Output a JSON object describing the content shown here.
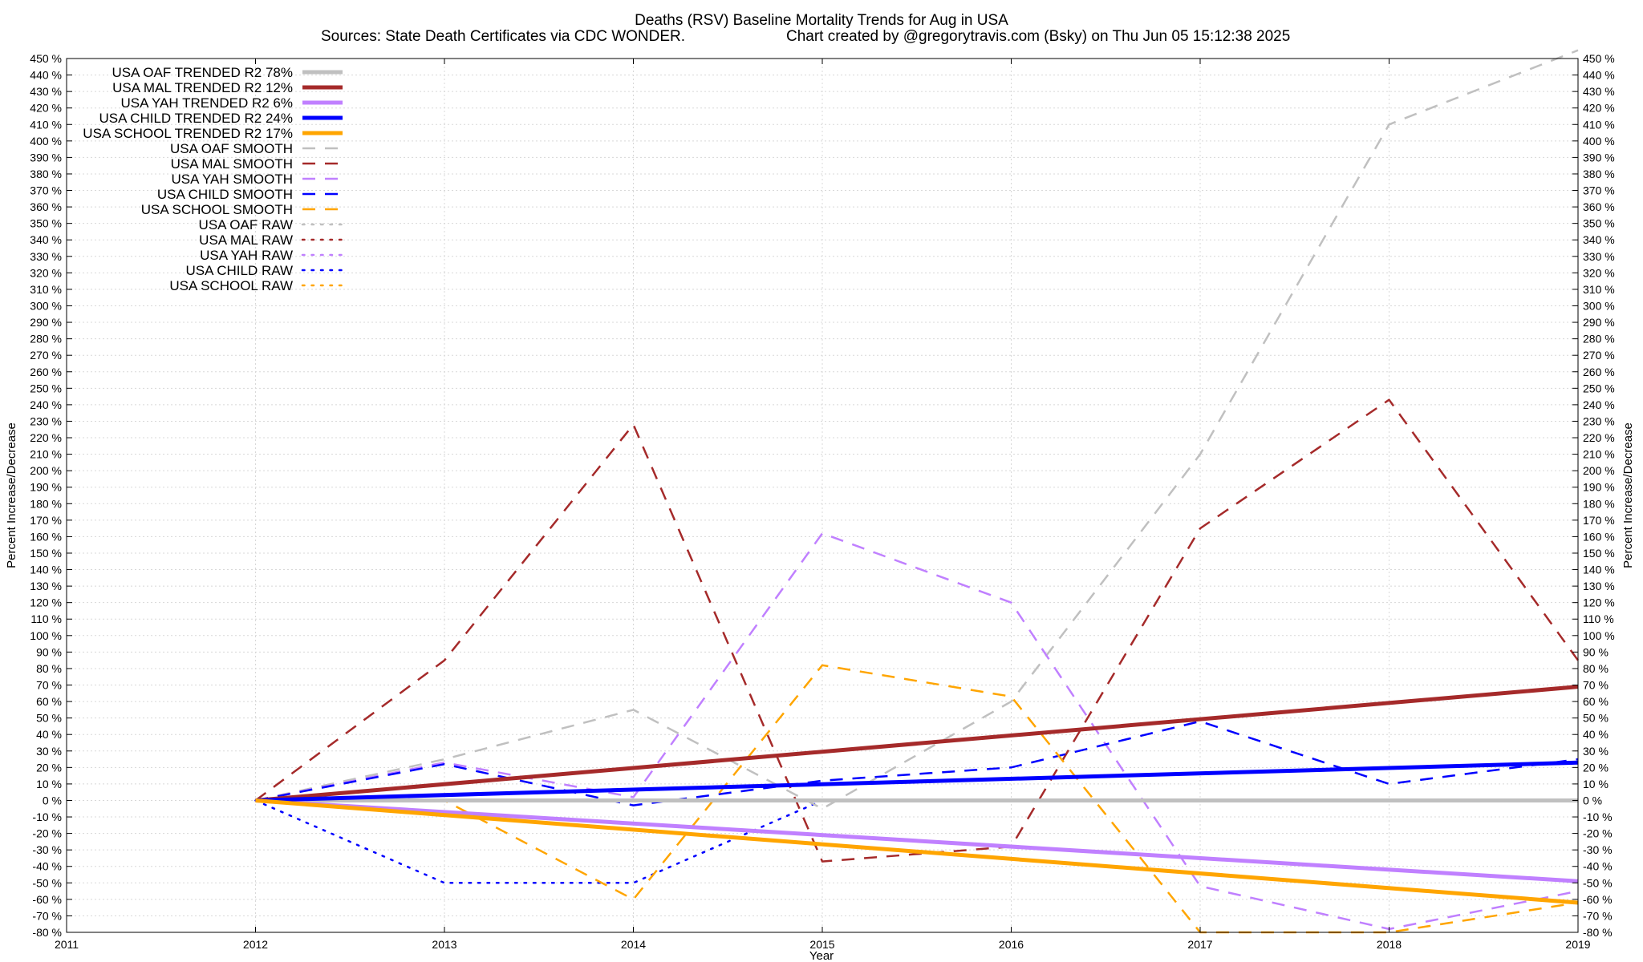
{
  "chart_data": {
    "type": "line",
    "title": "Deaths (RSV)  Baseline Mortality Trends for Aug in USA",
    "subtitle_left": "Sources: State Death Certificates via CDC WONDER.",
    "subtitle_right": "Chart created by @gregorytravis.com (Bsky) on Thu Jun 05 15:12:38 2025",
    "xlabel": "Year",
    "ylabel_left": "Percent Increase/Decrease",
    "ylabel_right": "Percent Increase/Decrease",
    "xlim": [
      2011,
      2019
    ],
    "ylim": [
      -80,
      450
    ],
    "x_ticks": [
      2011,
      2012,
      2013,
      2014,
      2015,
      2016,
      2017,
      2018,
      2019
    ],
    "x_tick_labels": [
      "2011",
      "2012",
      "2013",
      "2014",
      "2015",
      "2016",
      "2017",
      "2018",
      "2019"
    ],
    "y_tick_step": 10,
    "y_tick_suffix": " %",
    "grid": true,
    "legend_position": "top-left",
    "series": [
      {
        "name": "USA OAF TRENDED R2  78%",
        "style": "trend",
        "color": "#c0c0c0",
        "x": [
          2012,
          2019
        ],
        "values": [
          0,
          0
        ]
      },
      {
        "name": "USA MAL TRENDED R2  12%",
        "style": "trend",
        "color": "#a52a2a",
        "x": [
          2012,
          2019
        ],
        "values": [
          0,
          69
        ]
      },
      {
        "name": "USA YAH TRENDED R2   6%",
        "style": "trend",
        "color": "#c080ff",
        "x": [
          2012,
          2019
        ],
        "values": [
          0,
          -49
        ]
      },
      {
        "name": "USA CHILD TRENDED R2  24%",
        "style": "trend",
        "color": "#0000ff",
        "x": [
          2012,
          2019
        ],
        "values": [
          0,
          23
        ]
      },
      {
        "name": "USA SCHOOL TRENDED R2  17%",
        "style": "trend",
        "color": "#ffa500",
        "x": [
          2012,
          2019
        ],
        "values": [
          0,
          -62
        ]
      },
      {
        "name": "USA OAF SMOOTH",
        "style": "smooth",
        "color": "#c0c0c0",
        "x": [
          2012,
          2013,
          2014,
          2015,
          2016,
          2017,
          2018,
          2019
        ],
        "values": [
          0,
          25,
          55,
          -5,
          60,
          210,
          410,
          455
        ]
      },
      {
        "name": "USA MAL SMOOTH",
        "style": "smooth",
        "color": "#a52a2a",
        "x": [
          2012,
          2013,
          2014,
          2015,
          2016,
          2017,
          2018,
          2019
        ],
        "values": [
          0,
          85,
          228,
          -37,
          -28,
          165,
          243,
          85
        ]
      },
      {
        "name": "USA YAH SMOOTH",
        "style": "smooth",
        "color": "#c080ff",
        "x": [
          2012,
          2013,
          2014,
          2015,
          2016,
          2017,
          2018,
          2019
        ],
        "values": [
          0,
          23,
          2,
          162,
          120,
          -52,
          -78,
          -55
        ]
      },
      {
        "name": "USA CHILD SMOOTH",
        "style": "smooth",
        "color": "#0000ff",
        "x": [
          2012,
          2013,
          2014,
          2015,
          2016,
          2017,
          2018,
          2019
        ],
        "values": [
          0,
          22,
          -3,
          12,
          20,
          48,
          10,
          25
        ]
      },
      {
        "name": "USA SCHOOL SMOOTH",
        "style": "smooth",
        "color": "#ffa500",
        "x": [
          2012,
          2013,
          2014,
          2015,
          2016,
          2017,
          2018,
          2019
        ],
        "values": [
          0,
          0,
          -60,
          82,
          63,
          -80,
          -80,
          -62
        ]
      },
      {
        "name": "USA OAF RAW",
        "style": "raw",
        "color": "#c0c0c0",
        "x": [],
        "values": []
      },
      {
        "name": "USA MAL RAW",
        "style": "raw",
        "color": "#a52a2a",
        "x": [],
        "values": []
      },
      {
        "name": "USA YAH RAW",
        "style": "raw",
        "color": "#c080ff",
        "x": [],
        "values": []
      },
      {
        "name": "USA CHILD RAW",
        "style": "raw",
        "color": "#0000ff",
        "x": [
          2012,
          2013,
          2014,
          2015
        ],
        "values": [
          0,
          -50,
          -50,
          0
        ]
      },
      {
        "name": "USA SCHOOL RAW",
        "style": "raw",
        "color": "#ffa500",
        "x": [],
        "values": []
      }
    ]
  }
}
